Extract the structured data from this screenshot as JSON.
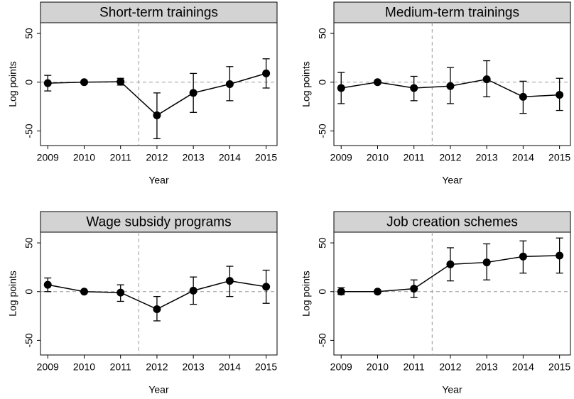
{
  "chart_data": [
    {
      "type": "line",
      "title": "Short-term trainings",
      "xlabel": "Year",
      "ylabel": "Log points",
      "color": "#000000",
      "x": [
        2009,
        2010,
        2011,
        2012,
        2013,
        2014,
        2015
      ],
      "values": [
        -1,
        0,
        0.5,
        -34,
        -11,
        -2,
        9
      ],
      "ci_low": [
        -9,
        -1,
        -3,
        -58,
        -31,
        -19,
        -6
      ],
      "ci_high": [
        7,
        1,
        4,
        -11,
        9,
        16,
        24
      ],
      "xlim": [
        2008.8,
        2015.3
      ],
      "ylim": [
        -65,
        61
      ],
      "xticks": [
        2009,
        2010,
        2011,
        2012,
        2013,
        2014,
        2015
      ],
      "yticks": [
        -50,
        0,
        50
      ],
      "vline": 2011.5,
      "hline": 0
    },
    {
      "type": "line",
      "title": "Medium-term trainings",
      "xlabel": "Year",
      "ylabel": "Log points",
      "color": "#000000",
      "x": [
        2009,
        2010,
        2011,
        2012,
        2013,
        2014,
        2015
      ],
      "values": [
        -6,
        0,
        -6,
        -4,
        3,
        -15,
        -13
      ],
      "ci_low": [
        -22,
        -1,
        -19,
        -22,
        -15,
        -32,
        -29
      ],
      "ci_high": [
        10,
        1,
        6,
        15,
        22,
        1,
        4
      ],
      "xlim": [
        2008.8,
        2015.3
      ],
      "ylim": [
        -65,
        61
      ],
      "xticks": [
        2009,
        2010,
        2011,
        2012,
        2013,
        2014,
        2015
      ],
      "yticks": [
        -50,
        0,
        50
      ],
      "vline": 2011.5,
      "hline": 0
    },
    {
      "type": "line",
      "title": "Wage subsidy programs",
      "xlabel": "Year",
      "ylabel": "Log points",
      "color": "#000000",
      "x": [
        2009,
        2010,
        2011,
        2012,
        2013,
        2014,
        2015
      ],
      "values": [
        7,
        0,
        -1,
        -18,
        1,
        11,
        5
      ],
      "ci_low": [
        0,
        -1,
        -10,
        -30,
        -13,
        -5,
        -12
      ],
      "ci_high": [
        14,
        1,
        7,
        -5,
        15,
        26,
        22
      ],
      "xlim": [
        2008.8,
        2015.3
      ],
      "ylim": [
        -65,
        61
      ],
      "xticks": [
        2009,
        2010,
        2011,
        2012,
        2013,
        2014,
        2015
      ],
      "yticks": [
        -50,
        0,
        50
      ],
      "vline": 2011.5,
      "hline": 0
    },
    {
      "type": "line",
      "title": "Job creation schemes",
      "xlabel": "Year",
      "ylabel": "Log points",
      "color": "#000000",
      "x": [
        2009,
        2010,
        2011,
        2012,
        2013,
        2014,
        2015
      ],
      "values": [
        0,
        0,
        3,
        28,
        30,
        36,
        37
      ],
      "ci_low": [
        -3,
        -1,
        -6,
        11,
        12,
        19,
        19
      ],
      "ci_high": [
        4,
        1,
        12,
        45,
        49,
        52,
        55
      ],
      "xlim": [
        2008.8,
        2015.3
      ],
      "ylim": [
        -65,
        61
      ],
      "xticks": [
        2009,
        2010,
        2011,
        2012,
        2013,
        2014,
        2015
      ],
      "yticks": [
        -50,
        0,
        50
      ],
      "vline": 2011.5,
      "hline": 0
    }
  ]
}
